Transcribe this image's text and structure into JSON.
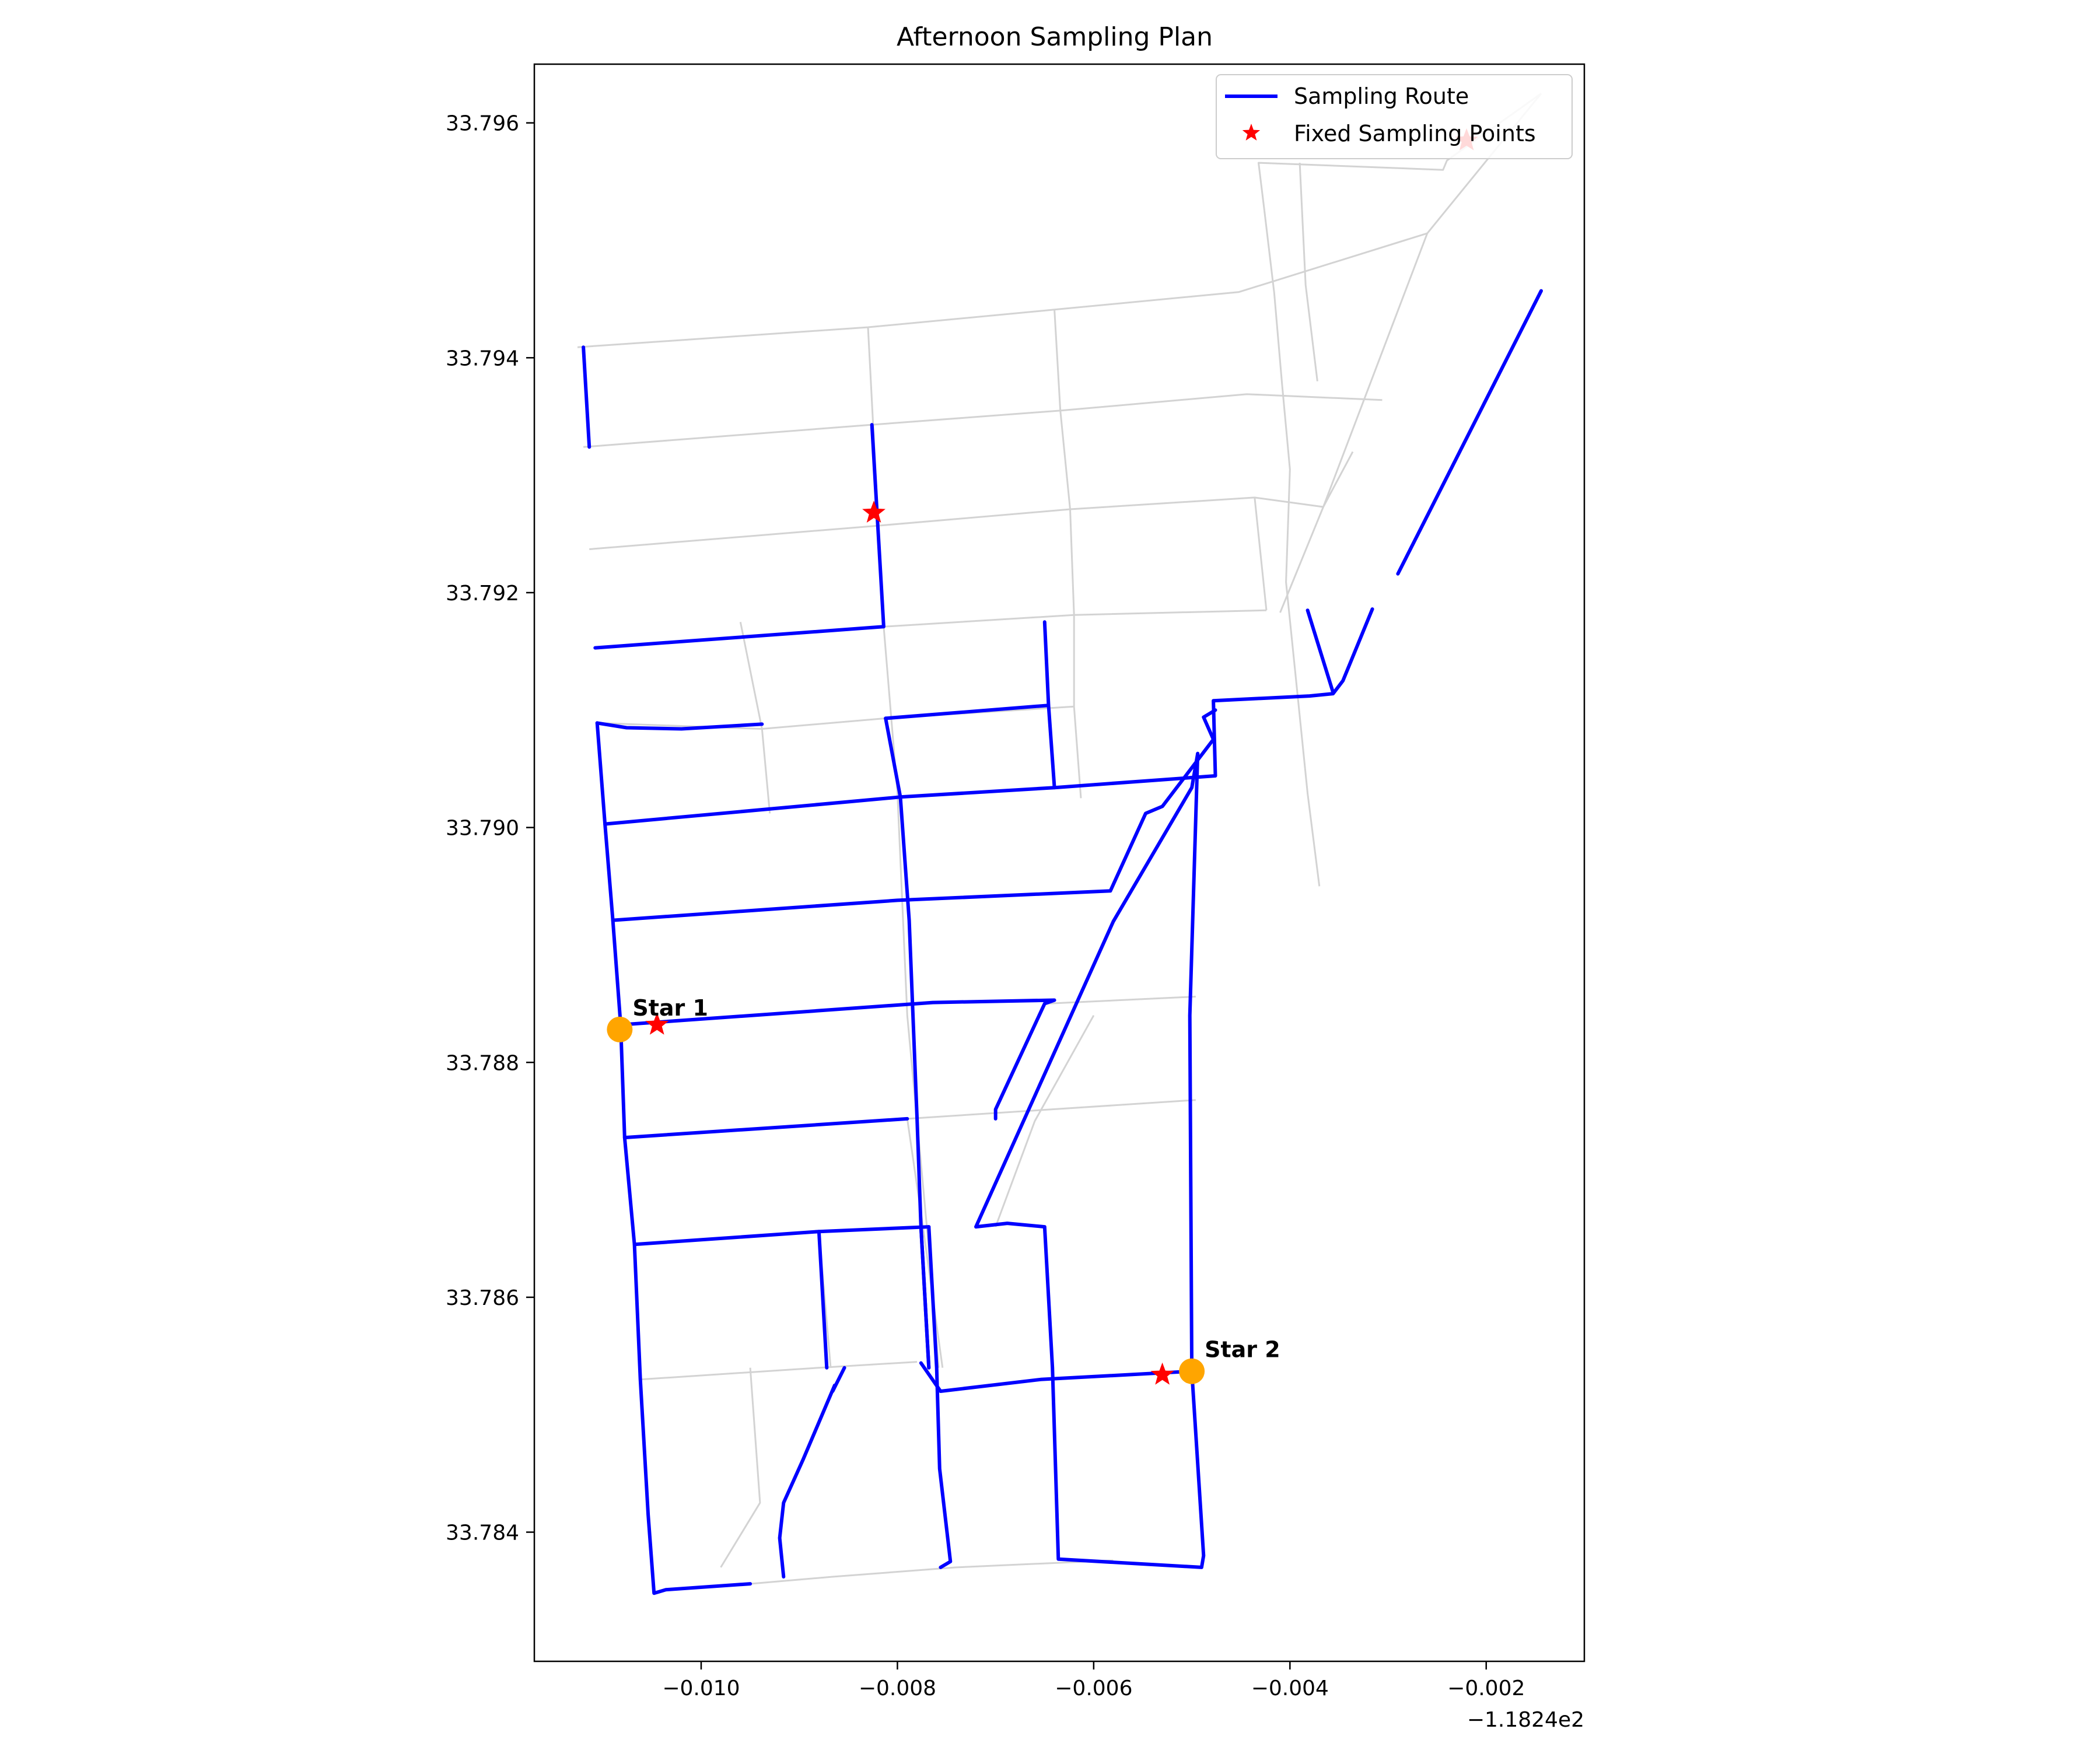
{
  "title": "Afternoon Sampling Plan",
  "colors": {
    "route": "#0000ff",
    "street": "#d3d3d3",
    "sampling_point": "#ff0000",
    "start_marker": "#ffa500",
    "axes": "#000000"
  },
  "legend": {
    "placement": "top-right",
    "items": [
      {
        "label": "Sampling Route",
        "symbol": "line"
      },
      {
        "label": "Fixed Sampling Points",
        "symbol": "star"
      }
    ]
  },
  "axes": {
    "x_ticks": [
      "−0.010",
      "−0.008",
      "−0.006",
      "−0.004",
      "−0.002"
    ],
    "y_ticks": [
      "33.796",
      "33.794",
      "33.792",
      "33.790",
      "33.788",
      "33.786",
      "33.784"
    ],
    "x_offset_label": "−1.1824e2"
  },
  "chart_data": {
    "type": "map",
    "title": "Afternoon Sampling Plan",
    "xlabel": "",
    "ylabel": "",
    "x_offset": -118.24,
    "xlim": [
      -0.0117,
      -0.001
    ],
    "ylim": [
      33.7829,
      33.7965
    ],
    "x_ticks": [
      -0.01,
      -0.008,
      -0.006,
      -0.004,
      -0.002
    ],
    "y_ticks": [
      33.796,
      33.794,
      33.792,
      33.79,
      33.788,
      33.786,
      33.784
    ],
    "grid": false,
    "legend_placement": "top-right",
    "start_points": [
      {
        "label": "Star 1",
        "x": -0.01083,
        "y": 33.78828
      },
      {
        "label": "Star 2",
        "x": -0.005,
        "y": 33.78537
      }
    ],
    "sampling_points": [
      {
        "x": -0.00824,
        "y": 33.79268
      },
      {
        "x": -0.01045,
        "y": 33.78832
      },
      {
        "x": -0.0053,
        "y": 33.78534
      },
      {
        "x": -0.0022,
        "y": 33.79585
      }
    ],
    "streets": [
      [
        [
          -0.01126,
          33.79409
        ],
        [
          -0.0083,
          33.79426
        ],
        [
          -0.0064,
          33.79441
        ],
        [
          -0.00452,
          33.79456
        ],
        [
          -0.0026,
          33.79506
        ]
      ],
      [
        [
          -0.0112,
          33.79324
        ],
        [
          -0.00826,
          33.79343
        ],
        [
          -0.00634,
          33.79355
        ],
        [
          -0.00444,
          33.79369
        ],
        [
          -0.00306,
          33.79364
        ]
      ],
      [
        [
          -0.01114,
          33.79237
        ],
        [
          -0.0082,
          33.79257
        ],
        [
          -0.00624,
          33.79271
        ],
        [
          -0.00436,
          33.79281
        ],
        [
          -0.00366,
          33.79273
        ]
      ],
      [
        [
          -0.01108,
          33.79153
        ],
        [
          -0.00814,
          33.79171
        ],
        [
          -0.0062,
          33.79181
        ],
        [
          -0.00424,
          33.79185
        ]
      ],
      [
        [
          -0.01106,
          33.79089
        ],
        [
          -0.00938,
          33.79084
        ],
        [
          -0.00812,
          33.79093
        ],
        [
          -0.0062,
          33.79103
        ]
      ],
      [
        [
          -0.0083,
          33.79426
        ],
        [
          -0.00814,
          33.79171
        ],
        [
          -0.008,
          33.7903
        ],
        [
          -0.0079,
          33.7884
        ],
        [
          -0.0077,
          33.7866
        ],
        [
          -0.00758,
          33.7854
        ]
      ],
      [
        [
          -0.0064,
          33.79441
        ],
        [
          -0.00634,
          33.79355
        ],
        [
          -0.00624,
          33.79271
        ],
        [
          -0.0062,
          33.79181
        ],
        [
          -0.0062,
          33.79103
        ],
        [
          -0.00613,
          33.79025
        ]
      ],
      [
        [
          -0.00436,
          33.79281
        ],
        [
          -0.00424,
          33.79185
        ]
      ],
      [
        [
          -0.0096,
          33.79175
        ],
        [
          -0.00938,
          33.79084
        ],
        [
          -0.0093,
          33.79012
        ]
      ],
      [
        [
          -0.00426,
          33.79525
        ],
        [
          -0.00416,
          33.79455
        ],
        [
          -0.00408,
          33.79377
        ],
        [
          -0.004,
          33.79305
        ],
        [
          -0.00404,
          33.79209
        ],
        [
          -0.00392,
          33.79111
        ],
        [
          -0.00382,
          33.79029
        ],
        [
          -0.0037,
          33.7895
        ]
      ],
      [
        [
          -0.00426,
          33.79525
        ],
        [
          -0.00432,
          33.79566
        ],
        [
          -0.00244,
          33.7956
        ],
        [
          -0.0024,
          33.79568
        ],
        [
          -0.00144,
          33.79625
        ]
      ],
      [
        [
          -0.0039,
          33.79566
        ],
        [
          -0.00384,
          33.79462
        ],
        [
          -0.00372,
          33.7938
        ]
      ],
      [
        [
          -0.00144,
          33.79625
        ],
        [
          -0.0026,
          33.79506
        ],
        [
          -0.00366,
          33.79273
        ],
        [
          -0.00336,
          33.7932
        ]
      ],
      [
        [
          -0.00366,
          33.79273
        ],
        [
          -0.0041,
          33.79183
        ]
      ],
      [
        [
          -0.006,
          33.7884
        ],
        [
          -0.0066,
          33.7875
        ],
        [
          -0.007,
          33.7866
        ]
      ],
      [
        [
          -0.0065,
          33.7885
        ],
        [
          -0.00496,
          33.78856
        ]
      ],
      [
        [
          -0.0079,
          33.78752
        ],
        [
          -0.00496,
          33.78768
        ]
      ],
      [
        [
          -0.0079,
          33.78752
        ],
        [
          -0.00774,
          33.7866
        ],
        [
          -0.00754,
          33.7854
        ]
      ],
      [
        [
          -0.01068,
          33.78645
        ],
        [
          -0.01062,
          33.7853
        ]
      ],
      [
        [
          -0.0088,
          33.78656
        ],
        [
          -0.00868,
          33.7854
        ]
      ],
      [
        [
          -0.01062,
          33.7853
        ],
        [
          -0.0088,
          33.7854
        ],
        [
          -0.0078,
          33.78545
        ]
      ],
      [
        [
          -0.0095,
          33.7854
        ],
        [
          -0.0094,
          33.78425
        ],
        [
          -0.0098,
          33.7837
        ]
      ],
      [
        [
          -0.0095,
          33.78356
        ],
        [
          -0.00866,
          33.78362
        ],
        [
          -0.0074,
          33.7837
        ],
        [
          -0.0058,
          33.78376
        ]
      ]
    ],
    "route": [
      [
        [
          -0.0112,
          33.79409
        ],
        [
          -0.01114,
          33.79324
        ]
      ],
      [
        [
          -0.00826,
          33.79343
        ],
        [
          -0.00814,
          33.79171
        ],
        [
          -0.01108,
          33.79153
        ]
      ],
      [
        [
          -0.01106,
          33.79089
        ],
        [
          -0.01076,
          33.79085
        ],
        [
          -0.0102,
          33.79084
        ],
        [
          -0.00938,
          33.79088
        ]
      ],
      [
        [
          -0.01106,
          33.79089
        ],
        [
          -0.01098,
          33.79003
        ],
        [
          -0.0109,
          33.78921
        ],
        [
          -0.01082,
          33.78832
        ],
        [
          -0.01078,
          33.78736
        ],
        [
          -0.01068,
          33.78645
        ],
        [
          -0.01062,
          33.7853
        ],
        [
          -0.01054,
          33.78415
        ],
        [
          -0.01048,
          33.78348
        ],
        [
          -0.01036,
          33.78351
        ],
        [
          -0.0095,
          33.78356
        ]
      ],
      [
        [
          -0.01098,
          33.79003
        ],
        [
          -0.00797,
          33.79026
        ],
        [
          -0.0064,
          33.79034
        ],
        [
          -0.00476,
          33.79044
        ],
        [
          -0.00478,
          33.79108
        ],
        [
          -0.0038,
          33.79112
        ],
        [
          -0.00356,
          33.79114
        ],
        [
          -0.00346,
          33.79125
        ],
        [
          -0.00316,
          33.79186
        ]
      ],
      [
        [
          -0.00812,
          33.79093
        ],
        [
          -0.00797,
          33.79026
        ],
        [
          -0.00788,
          33.78921
        ],
        [
          -0.0078,
          33.78752
        ],
        [
          -0.00776,
          33.7866
        ],
        [
          -0.00768,
          33.7854
        ]
      ],
      [
        [
          -0.00812,
          33.79093
        ],
        [
          -0.00646,
          33.79104
        ],
        [
          -0.0064,
          33.79034
        ]
      ],
      [
        [
          -0.00646,
          33.79104
        ],
        [
          -0.0065,
          33.79175
        ]
      ],
      [
        [
          -0.0109,
          33.78921
        ],
        [
          -0.008,
          33.78938
        ],
        [
          -0.00583,
          33.78946
        ],
        [
          -0.00547,
          33.79012
        ],
        [
          -0.0053,
          33.79018
        ],
        [
          -0.00478,
          33.79075
        ],
        [
          -0.00488,
          33.79094
        ],
        [
          -0.00476,
          33.791
        ]
      ],
      [
        [
          -0.01082,
          33.78832
        ],
        [
          -0.00764,
          33.78851
        ],
        [
          -0.0064,
          33.78853
        ],
        [
          -0.0065,
          33.7885
        ],
        [
          -0.007,
          33.7876
        ],
        [
          -0.007,
          33.78752
        ]
      ],
      [
        [
          -0.01078,
          33.78736
        ],
        [
          -0.0079,
          33.78752
        ]
      ],
      [
        [
          -0.01068,
          33.78645
        ],
        [
          -0.0088,
          33.78656
        ],
        [
          -0.00768,
          33.7866
        ]
      ],
      [
        [
          -0.0088,
          33.78656
        ],
        [
          -0.00872,
          33.7854
        ]
      ],
      [
        [
          -0.00776,
          33.7866
        ],
        [
          -0.00768,
          33.7854
        ]
      ],
      [
        [
          -0.00768,
          33.7866
        ],
        [
          -0.0076,
          33.7854
        ],
        [
          -0.00757,
          33.78454
        ],
        [
          -0.00746,
          33.78375
        ],
        [
          -0.00756,
          33.7837
        ]
      ],
      [
        [
          -0.00776,
          33.78544
        ],
        [
          -0.00756,
          33.7852
        ],
        [
          -0.00654,
          33.7853
        ],
        [
          -0.005,
          33.78537
        ]
      ],
      [
        [
          -0.005,
          33.78537
        ],
        [
          -0.00488,
          33.7838
        ],
        [
          -0.0049,
          33.7837
        ],
        [
          -0.00636,
          33.78377
        ],
        [
          -0.00642,
          33.7854
        ],
        [
          -0.0065,
          33.7866
        ],
        [
          -0.00688,
          33.78663
        ],
        [
          -0.0072,
          33.7866
        ],
        [
          -0.0058,
          33.7892
        ],
        [
          -0.005,
          33.79034
        ],
        [
          -0.00494,
          33.79063
        ]
      ],
      [
        [
          -0.00494,
          33.79063
        ],
        [
          -0.00502,
          33.7884
        ],
        [
          -0.005,
          33.78537
        ]
      ],
      [
        [
          -0.00854,
          33.7854
        ],
        [
          -0.00866,
          33.7852
        ],
        [
          -0.00864,
          33.78525
        ],
        [
          -0.00896,
          33.78462
        ],
        [
          -0.00916,
          33.78425
        ],
        [
          -0.0092,
          33.78395
        ],
        [
          -0.00916,
          33.78362
        ]
      ],
      [
        [
          -0.00144,
          33.79457
        ],
        [
          -0.0029,
          33.79216
        ]
      ],
      [
        [
          -0.00382,
          33.79185
        ],
        [
          -0.00356,
          33.79115
        ]
      ]
    ]
  }
}
